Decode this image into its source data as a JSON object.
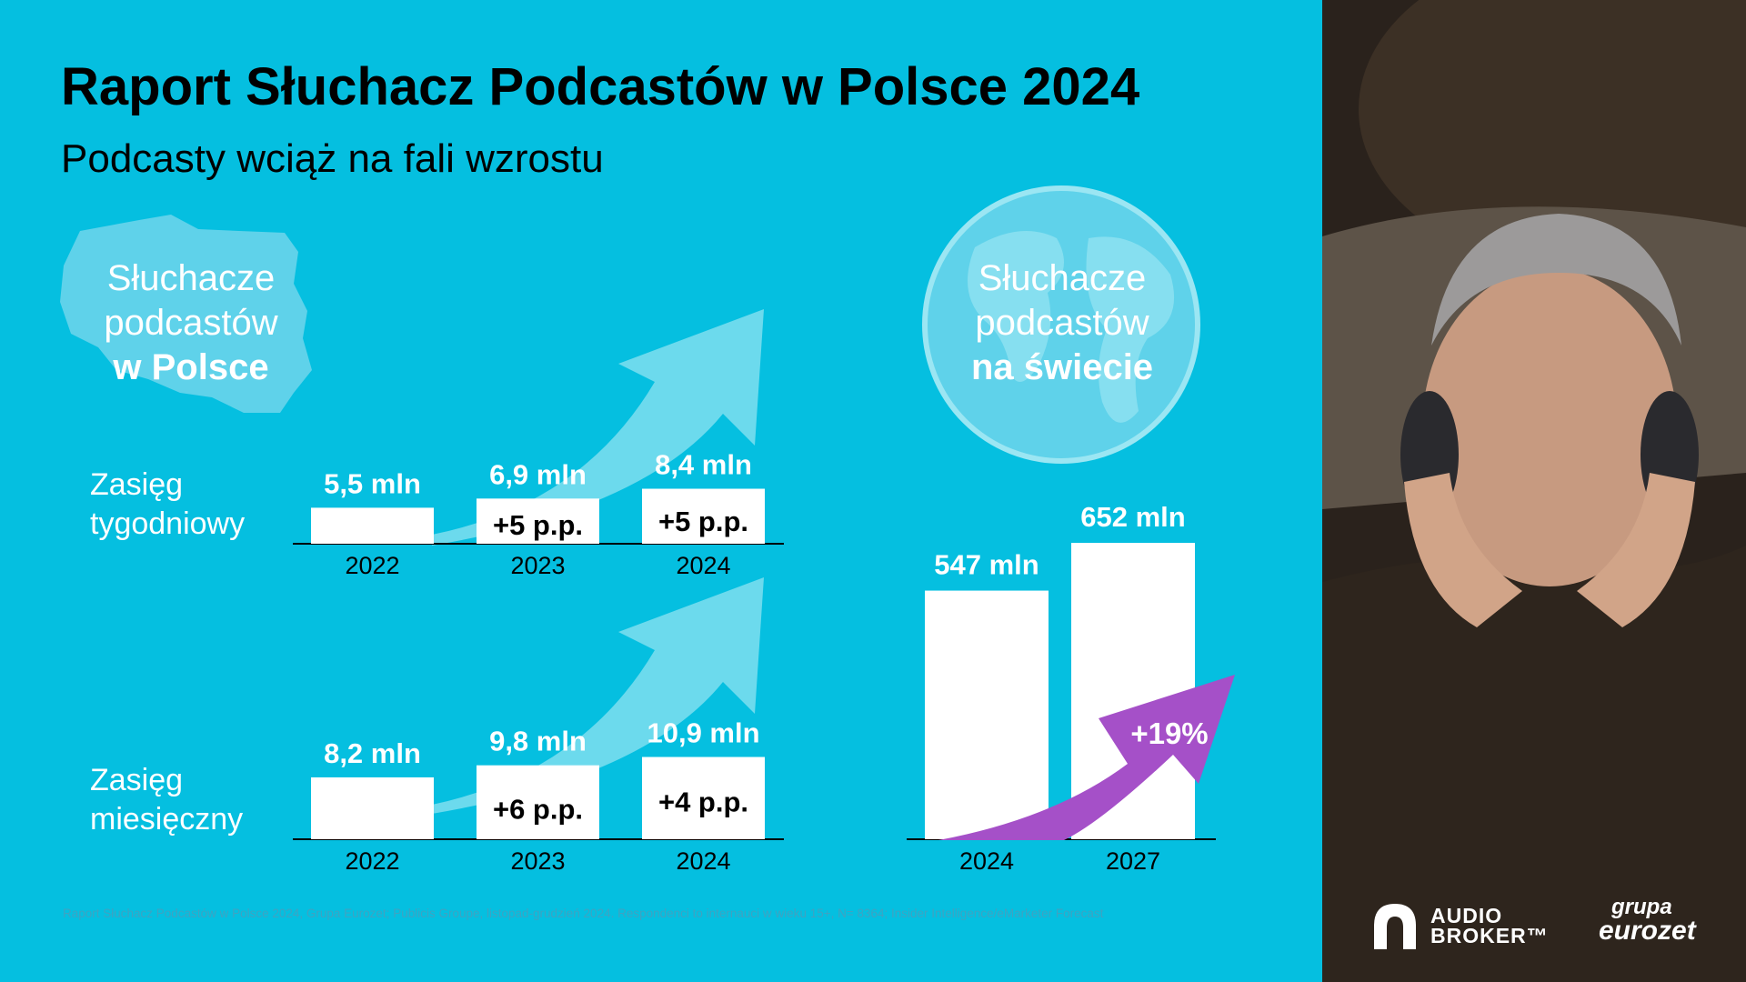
{
  "header": {
    "title": "Raport Słuchacz Podcastów w Polsce 2024",
    "subtitle": "Podcasty wciąż na fali wzrostu"
  },
  "poland_panel": {
    "line1": "Słuchacze",
    "line2": "podcastów",
    "line3": "w Polsce"
  },
  "world_panel": {
    "line1": "Słuchacze",
    "line2": "podcastów",
    "line3": "na świecie"
  },
  "rows": {
    "weekly_line1": "Zasięg",
    "weekly_line2": "tygodniowy",
    "monthly_line1": "Zasięg",
    "monthly_line2": "miesięczny"
  },
  "chart_data": [
    {
      "type": "bar",
      "title": "Zasięg tygodniowy",
      "categories": [
        "2022",
        "2023",
        "2024"
      ],
      "values": [
        5.5,
        6.9,
        8.4
      ],
      "unit": "mln",
      "value_labels": [
        "5,5 mln",
        "6,9 mln",
        "8,4 mln"
      ],
      "change_labels": [
        "",
        "+5 p.p.",
        "+5 p.p."
      ]
    },
    {
      "type": "bar",
      "title": "Zasięg miesięczny",
      "categories": [
        "2022",
        "2023",
        "2024"
      ],
      "values": [
        8.2,
        9.8,
        10.9
      ],
      "unit": "mln",
      "value_labels": [
        "8,2 mln",
        "9,8 mln",
        "10,9 mln"
      ],
      "change_labels": [
        "",
        "+6 p.p.",
        "+4 p.p."
      ]
    },
    {
      "type": "bar",
      "title": "Słuchacze podcastów na świecie",
      "categories": [
        "2024",
        "2027"
      ],
      "values": [
        547,
        652
      ],
      "unit": "mln",
      "value_labels": [
        "547 mln",
        "652 mln"
      ],
      "growth_label": "+19%"
    }
  ],
  "colors": {
    "background": "#05bfe0",
    "bar": "#ffffff",
    "arrow_light": "#8fe3f1",
    "growth_arrow": "#a550c8",
    "text": "#000000",
    "label_white": "#ffffff"
  },
  "source": "Raport Słuchacz Podcastów w Polsce 2024, Grupa Eurozet; Publicis Groupe, listopad-grudzień 2024. Respondenci to internauci w wieku 15+, N= 8364; Insider Intelligence/eMarketer Forecast",
  "logos": {
    "audio_line1": "AUDIO",
    "audio_line2": "BROKER™",
    "eurozet_line1": "grupa",
    "eurozet_line2": "eurozet"
  }
}
